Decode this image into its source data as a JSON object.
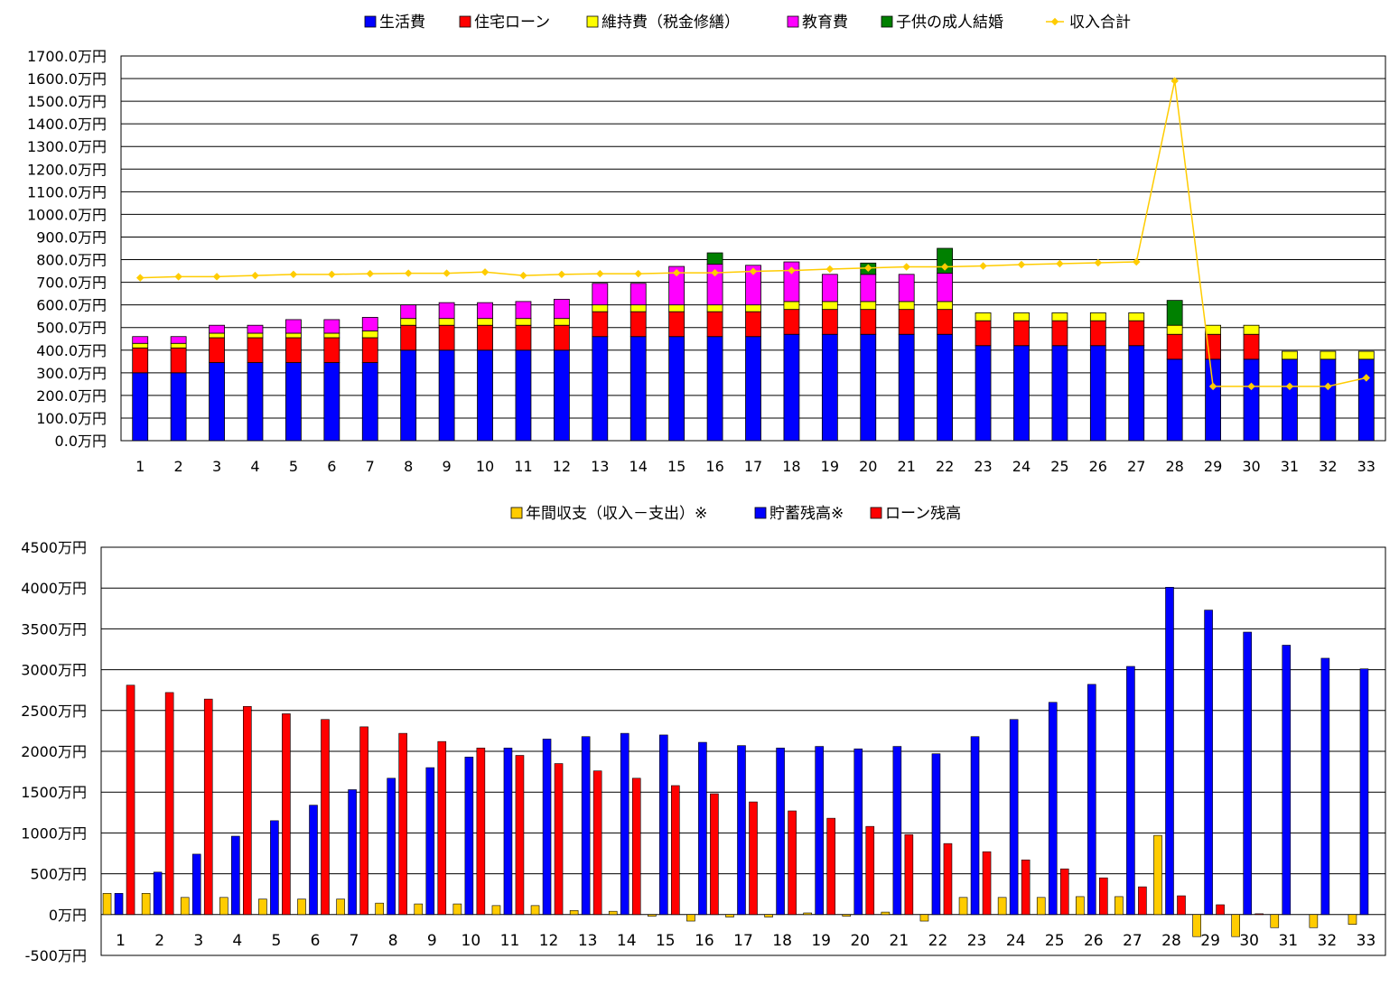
{
  "colors": {
    "living": "#0000ff",
    "loan": "#ff0000",
    "maint": "#ffff00",
    "edu": "#ff00ff",
    "wedding": "#008000",
    "income_line": "#ffcc00",
    "annual": "#ffcc00",
    "savings": "#0000ff",
    "loan_balance": "#ff0000"
  },
  "chart_data": [
    {
      "type": "bar",
      "stacked": true,
      "categories": [
        "1",
        "2",
        "3",
        "4",
        "5",
        "6",
        "7",
        "8",
        "9",
        "10",
        "11",
        "12",
        "13",
        "14",
        "15",
        "16",
        "17",
        "18",
        "19",
        "20",
        "21",
        "22",
        "23",
        "24",
        "25",
        "26",
        "27",
        "28",
        "29",
        "30",
        "31",
        "32",
        "33"
      ],
      "ylim": [
        0,
        1700
      ],
      "yticks": [
        "0.0万円",
        "100.0万円",
        "200.0万円",
        "300.0万円",
        "400.0万円",
        "500.0万円",
        "600.0万円",
        "700.0万円",
        "800.0万円",
        "900.0万円",
        "1000.0万円",
        "1100.0万円",
        "1200.0万円",
        "1300.0万円",
        "1400.0万円",
        "1500.0万円",
        "1600.0万円",
        "1700.0万円"
      ],
      "grid": true,
      "legend": "top",
      "series": [
        {
          "name": "生活費",
          "color_key": "living",
          "values": [
            300,
            300,
            345,
            345,
            345,
            345,
            345,
            400,
            400,
            400,
            400,
            400,
            460,
            460,
            460,
            460,
            460,
            470,
            470,
            470,
            470,
            470,
            420,
            420,
            420,
            420,
            420,
            360,
            360,
            360,
            360,
            360,
            360
          ]
        },
        {
          "name": "住宅ローン",
          "color_key": "loan",
          "values": [
            110,
            110,
            110,
            110,
            110,
            110,
            110,
            110,
            110,
            110,
            110,
            110,
            110,
            110,
            110,
            110,
            110,
            110,
            110,
            110,
            110,
            110,
            110,
            110,
            110,
            110,
            110,
            110,
            110,
            110,
            0,
            0,
            0
          ]
        },
        {
          "name": "維持費（税金修繕）",
          "color_key": "maint",
          "values": [
            20,
            20,
            20,
            20,
            20,
            20,
            30,
            30,
            30,
            30,
            30,
            30,
            30,
            30,
            30,
            30,
            30,
            35,
            35,
            35,
            35,
            35,
            35,
            35,
            35,
            35,
            35,
            40,
            40,
            40,
            35,
            35,
            35
          ]
        },
        {
          "name": "教育費",
          "color_key": "edu",
          "values": [
            30,
            30,
            35,
            35,
            60,
            60,
            60,
            60,
            70,
            70,
            75,
            85,
            95,
            95,
            170,
            180,
            175,
            175,
            120,
            120,
            120,
            125,
            0,
            0,
            0,
            0,
            0,
            0,
            0,
            0,
            0,
            0,
            0
          ]
        },
        {
          "name": "子供の成人結婚",
          "color_key": "wedding",
          "values": [
            0,
            0,
            0,
            0,
            0,
            0,
            0,
            0,
            0,
            0,
            0,
            0,
            0,
            0,
            0,
            50,
            0,
            0,
            0,
            50,
            0,
            110,
            0,
            0,
            0,
            0,
            0,
            110,
            0,
            0,
            0,
            0,
            0
          ]
        },
        {
          "name": "収入合計",
          "color_key": "income_line",
          "kind": "line",
          "values": [
            720,
            725,
            725,
            730,
            735,
            735,
            738,
            740,
            740,
            745,
            730,
            735,
            738,
            738,
            742,
            742,
            748,
            752,
            758,
            763,
            768,
            768,
            772,
            778,
            782,
            786,
            790,
            1590,
            240,
            240,
            240,
            240,
            278
          ]
        }
      ]
    },
    {
      "type": "bar",
      "categories": [
        "1",
        "2",
        "3",
        "4",
        "5",
        "6",
        "7",
        "8",
        "9",
        "10",
        "11",
        "12",
        "13",
        "14",
        "15",
        "16",
        "17",
        "18",
        "19",
        "20",
        "21",
        "22",
        "23",
        "24",
        "25",
        "26",
        "27",
        "28",
        "29",
        "30",
        "31",
        "32",
        "33"
      ],
      "ylim": [
        -500,
        4500
      ],
      "yticks": [
        "-500万円",
        "0万円",
        "500万円",
        "1000万円",
        "1500万円",
        "2000万円",
        "2500万円",
        "3000万円",
        "3500万円",
        "4000万円",
        "4500万円"
      ],
      "grid": true,
      "legend": "top",
      "series": [
        {
          "name": "年間収支（収入－支出）※",
          "color_key": "annual",
          "values": [
            260,
            260,
            210,
            210,
            190,
            190,
            190,
            140,
            130,
            130,
            110,
            110,
            50,
            40,
            -20,
            -80,
            -30,
            -30,
            20,
            -20,
            30,
            -80,
            210,
            210,
            210,
            220,
            220,
            970,
            -270,
            -270,
            -160,
            -160,
            -120
          ]
        },
        {
          "name": "貯蓄残高※",
          "color_key": "savings",
          "values": [
            260,
            520,
            740,
            960,
            1150,
            1340,
            1530,
            1670,
            1800,
            1930,
            2040,
            2150,
            2180,
            2220,
            2200,
            2110,
            2070,
            2040,
            2060,
            2030,
            2060,
            1970,
            2180,
            2390,
            2600,
            2820,
            3040,
            4010,
            3730,
            3460,
            3300,
            3140,
            3010
          ]
        },
        {
          "name": "ローン残高",
          "color_key": "loan_balance",
          "values": [
            2810,
            2720,
            2640,
            2550,
            2460,
            2390,
            2300,
            2220,
            2120,
            2040,
            1950,
            1850,
            1760,
            1670,
            1580,
            1480,
            1380,
            1270,
            1180,
            1080,
            980,
            870,
            770,
            670,
            560,
            450,
            340,
            230,
            120,
            10,
            0,
            0,
            0
          ]
        }
      ]
    }
  ]
}
